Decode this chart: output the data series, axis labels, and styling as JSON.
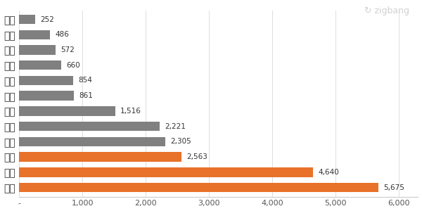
{
  "categories": [
    "광주",
    "경북",
    "충북",
    "전북",
    "울산",
    "대구",
    "강원",
    "부산",
    "전남",
    "인천",
    "경남",
    "경기"
  ],
  "values": [
    252,
    486,
    572,
    660,
    854,
    861,
    1516,
    2221,
    2305,
    2563,
    4640,
    5675
  ],
  "bar_colors": [
    "#808080",
    "#808080",
    "#808080",
    "#808080",
    "#808080",
    "#808080",
    "#808080",
    "#808080",
    "#808080",
    "#E8722A",
    "#E8722A",
    "#E8722A"
  ],
  "value_labels": [
    "252",
    "486",
    "572",
    "660",
    "854",
    "861",
    "1,516",
    "2,221",
    "2,305",
    "2,563",
    "4,640",
    "5,675"
  ],
  "xlim": [
    0,
    6300
  ],
  "xticks": [
    0,
    1000,
    2000,
    3000,
    4000,
    5000,
    6000
  ],
  "xticklabels": [
    "-",
    "1,000",
    "2,000",
    "3,000",
    "4,000",
    "5,000",
    "6,000"
  ],
  "background_color": "#ffffff",
  "bar_height": 0.62,
  "label_fontsize": 7.5,
  "tick_fontsize": 8.0,
  "watermark_text": "↻ zigbang",
  "gray_color": "#808080",
  "orange_color": "#E8722A"
}
